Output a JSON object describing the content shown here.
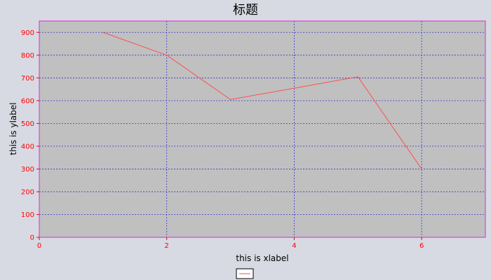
{
  "chart_data": {
    "type": "line",
    "title": "标题",
    "xlabel": "this is xlabel",
    "ylabel": "this is ylabel",
    "xlim": [
      0,
      7
    ],
    "ylim": [
      0,
      950
    ],
    "xticks": [
      0,
      2,
      4,
      6
    ],
    "yticks": [
      0,
      100,
      200,
      300,
      400,
      500,
      600,
      700,
      800,
      900
    ],
    "grid": true,
    "legend_position": "bottom-center",
    "series": [
      {
        "name": "",
        "color": "#ff5050",
        "x": [
          1,
          2,
          3,
          4,
          5,
          6
        ],
        "y": [
          900,
          800,
          605,
          655,
          705,
          300
        ]
      }
    ]
  },
  "colors": {
    "background": "#d8dae3",
    "plot_background": "#c0c0c0",
    "plot_border": "#cc33cc",
    "grid": "#3333cc",
    "tick_text": "#ff0000"
  }
}
